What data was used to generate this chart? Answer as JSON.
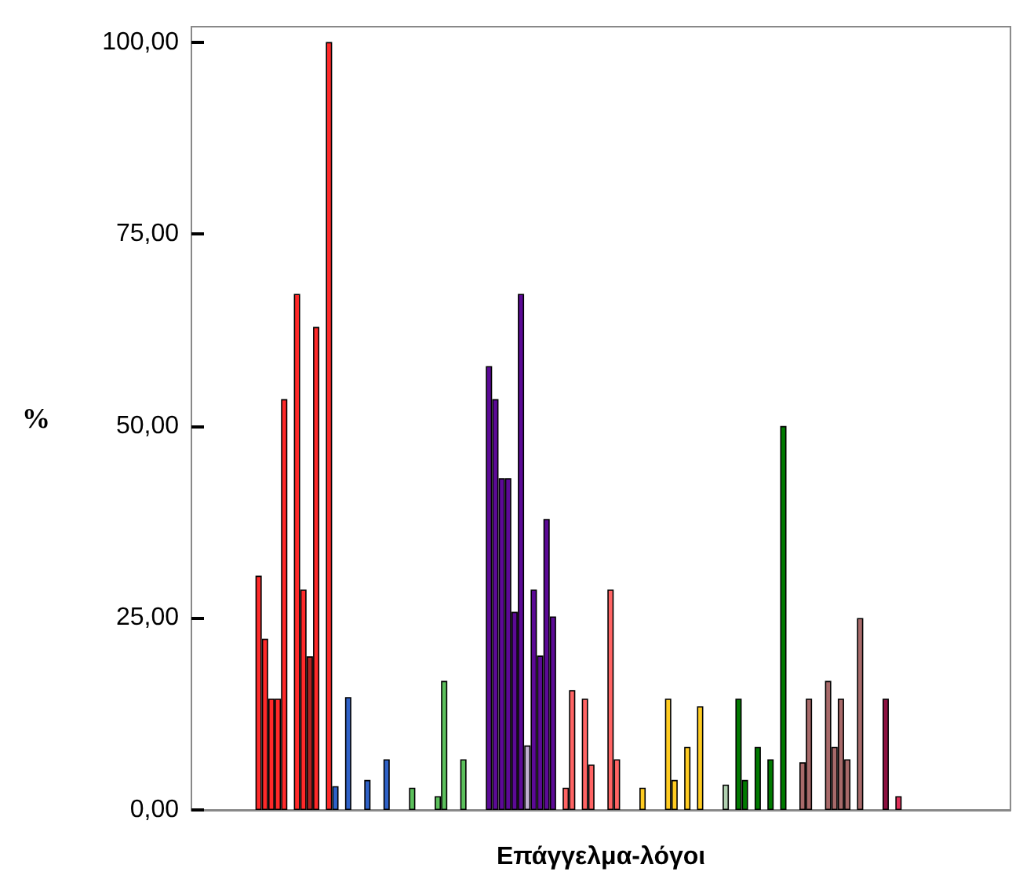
{
  "chart_data": {
    "type": "bar",
    "xlabel": "Επάγγελμα-λόγοι",
    "ylabel": "%",
    "categories": [
      null,
      null,
      null,
      null,
      null,
      null,
      null,
      null,
      null,
      null,
      null,
      null,
      null,
      null,
      null,
      null,
      null,
      null,
      null,
      null,
      null,
      null,
      null,
      null,
      null,
      null,
      null,
      null,
      null,
      null,
      null,
      null,
      null,
      null,
      null,
      null,
      null,
      null,
      null,
      null,
      null,
      null,
      null,
      null,
      null,
      null,
      null,
      null,
      null,
      null,
      null,
      null,
      null,
      null,
      null,
      null,
      null,
      null,
      null,
      null,
      null,
      null,
      null,
      null,
      null,
      null,
      null,
      null,
      null,
      null,
      null,
      null,
      null,
      null,
      null,
      null,
      null,
      null,
      null,
      null,
      null,
      null,
      null,
      null,
      null,
      null,
      null,
      null,
      null,
      null,
      null,
      null,
      null,
      null,
      null,
      null,
      null,
      null,
      null,
      null,
      null,
      null,
      null,
      null,
      null,
      null,
      null,
      null,
      null,
      null,
      null,
      null,
      null,
      null,
      null,
      null,
      null,
      null,
      null,
      null,
      null,
      null,
      null,
      null,
      null,
      null,
      null,
      null
    ],
    "values": [
      null,
      null,
      null,
      null,
      null,
      null,
      null,
      null,
      null,
      null,
      30.5,
      22.3,
      14.5,
      14.5,
      53.5,
      null,
      67.2,
      28.7,
      20.0,
      62.9,
      null,
      100,
      3.1,
      null,
      14.7,
      null,
      null,
      3.9,
      null,
      null,
      6.6,
      null,
      null,
      null,
      2.9,
      null,
      null,
      null,
      1.8,
      16.8,
      null,
      null,
      6.6,
      null,
      null,
      null,
      57.8,
      53.5,
      43.2,
      43.2,
      25.8,
      67.2,
      8.4,
      28.7,
      20.1,
      37.9,
      25.2,
      null,
      2.9,
      15.6,
      null,
      14.5,
      5.9,
      null,
      null,
      28.7,
      6.6,
      null,
      null,
      null,
      2.9,
      null,
      null,
      null,
      14.5,
      3.9,
      null,
      8.2,
      null,
      13.5,
      null,
      null,
      null,
      3.3,
      null,
      14.5,
      3.9,
      null,
      8.2,
      null,
      6.6,
      null,
      50.0,
      null,
      null,
      6.2,
      14.5,
      null,
      null,
      16.8,
      8.2,
      14.5,
      6.6,
      null,
      25.0,
      null,
      null,
      null,
      14.5,
      null,
      1.8,
      null,
      null,
      null,
      null,
      null,
      null,
      null,
      null,
      null,
      null,
      null,
      null,
      null,
      null,
      null,
      null,
      null
    ],
    "colors": [
      null,
      null,
      null,
      null,
      null,
      null,
      null,
      null,
      null,
      null,
      "#ff2a2a",
      "#ff2a2a",
      "#ff2a2a",
      "#ff2a2a",
      "#ff2a2a",
      null,
      "#ff2a2a",
      "#ff2a2a",
      "#b02020",
      "#ff2a2a",
      null,
      "#ff2a2a",
      "#2f62c8",
      null,
      "#2f62c8",
      null,
      null,
      "#2f62c8",
      null,
      null,
      "#2f62c8",
      null,
      null,
      null,
      "#5cc05c",
      null,
      null,
      null,
      "#5cc05c",
      "#5cc05c",
      null,
      null,
      "#5cc05c",
      null,
      null,
      null,
      "#5c0a96",
      "#5c0a96",
      "#5c0a96",
      "#5c0a96",
      "#5c0a96",
      "#5c0a96",
      "#c0b0d0",
      "#5c0a96",
      "#5c0a96",
      "#5c0a96",
      "#5c0a96",
      null,
      "#ff6464",
      "#ff6464",
      null,
      "#ff6464",
      "#ff6464",
      null,
      null,
      "#ff6464",
      "#ff6464",
      null,
      null,
      null,
      "#ffcc22",
      null,
      null,
      null,
      "#ffcc22",
      "#ffcc22",
      null,
      "#ffcc22",
      null,
      "#ffcc22",
      null,
      null,
      null,
      "#b0d0b0",
      null,
      "#007a00",
      "#007a00",
      null,
      "#007a00",
      null,
      "#007a00",
      null,
      "#007a00",
      null,
      null,
      "#a86a6a",
      "#a86a6a",
      null,
      null,
      "#a86a6a",
      "#a86a6a",
      "#a86a6a",
      "#a86a6a",
      null,
      "#a86a6a",
      null,
      null,
      null,
      "#8c1040",
      null,
      "#e0305a",
      null,
      null,
      null,
      null,
      null,
      null,
      null,
      null,
      null,
      null,
      null,
      null,
      null,
      null,
      null,
      null,
      null
    ],
    "ylim": [
      0,
      102
    ],
    "yticks": [
      {
        "value": 0,
        "label": "0,00"
      },
      {
        "value": 25,
        "label": "25,00"
      },
      {
        "value": 50,
        "label": "50,00"
      },
      {
        "value": 75,
        "label": "75,00"
      },
      {
        "value": 100,
        "label": "100,00"
      }
    ],
    "grid": false
  }
}
